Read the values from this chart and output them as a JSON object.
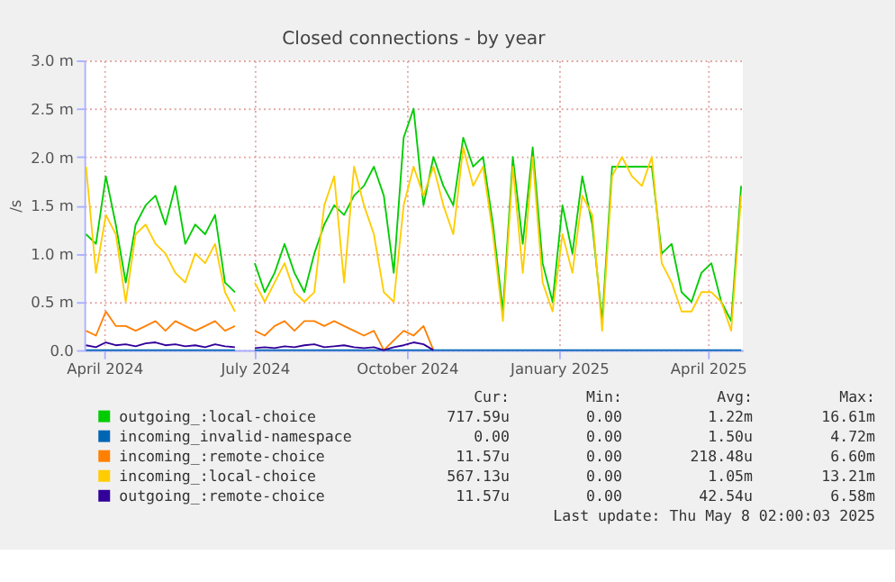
{
  "chart_data": {
    "type": "line",
    "title": "Closed connections - by year",
    "ylabel": "/s",
    "x": [
      "2024-03-21",
      "2024-03-27",
      "2024-04-02",
      "2024-04-08",
      "2024-04-14",
      "2024-04-20",
      "2024-04-26",
      "2024-05-02",
      "2024-05-08",
      "2024-05-14",
      "2024-05-20",
      "2024-05-26",
      "2024-06-01",
      "2024-06-07",
      "2024-06-13",
      "2024-06-19",
      "2024-06-25",
      "2024-07-01",
      "2024-07-07",
      "2024-07-13",
      "2024-07-19",
      "2024-07-25",
      "2024-07-31",
      "2024-08-06",
      "2024-08-12",
      "2024-08-18",
      "2024-08-24",
      "2024-08-30",
      "2024-09-05",
      "2024-09-11",
      "2024-09-17",
      "2024-09-23",
      "2024-09-29",
      "2024-10-05",
      "2024-10-11",
      "2024-10-17",
      "2024-10-23",
      "2024-10-29",
      "2024-11-04",
      "2024-11-10",
      "2024-11-16",
      "2024-11-22",
      "2024-11-28",
      "2024-12-04",
      "2024-12-10",
      "2024-12-16",
      "2024-12-22",
      "2024-12-28",
      "2025-01-03",
      "2025-01-09",
      "2025-01-15",
      "2025-01-21",
      "2025-01-27",
      "2025-02-02",
      "2025-02-08",
      "2025-02-14",
      "2025-02-20",
      "2025-02-26",
      "2025-03-04",
      "2025-03-10",
      "2025-03-16",
      "2025-03-22",
      "2025-03-28",
      "2025-04-03",
      "2025-04-09",
      "2025-04-15",
      "2025-04-21"
    ],
    "series": [
      {
        "name": "outgoing_:local-choice",
        "color": "#00cc00",
        "values": [
          1.2,
          1.1,
          1.8,
          1.3,
          0.7,
          1.3,
          1.5,
          1.6,
          1.3,
          1.7,
          1.1,
          1.3,
          1.2,
          1.4,
          0.7,
          0.6,
          null,
          0.9,
          0.6,
          0.8,
          1.1,
          0.8,
          0.6,
          1.0,
          1.3,
          1.5,
          1.4,
          1.6,
          1.7,
          1.9,
          1.6,
          0.8,
          2.2,
          2.5,
          1.5,
          2.0,
          1.7,
          1.5,
          2.2,
          1.9,
          2.0,
          1.3,
          0.4,
          2.0,
          1.1,
          2.1,
          0.9,
          0.5,
          1.5,
          1.0,
          1.8,
          1.3,
          0.3,
          1.9,
          1.9,
          1.9,
          1.9,
          1.9,
          1.0,
          1.1,
          0.6,
          0.5,
          0.8,
          0.9,
          0.5,
          0.3,
          1.7
        ]
      },
      {
        "name": "incoming_invalid-namespace",
        "color": "#0066b3",
        "values": [
          0,
          0,
          0,
          0,
          0,
          0,
          0,
          0,
          0,
          0,
          0,
          0,
          0,
          0,
          0,
          0,
          null,
          0,
          0,
          0,
          0,
          0,
          0,
          0,
          0,
          0,
          0,
          0,
          0,
          0,
          0,
          0,
          0,
          0,
          0,
          0,
          0,
          0,
          0,
          0,
          0,
          0,
          0,
          0,
          0,
          0,
          0,
          0,
          0,
          0,
          0,
          0,
          0,
          0,
          0,
          0,
          0,
          0,
          0,
          0,
          0,
          0,
          0,
          0,
          0,
          0,
          0
        ]
      },
      {
        "name": "incoming_:remote-choice",
        "color": "#ff8000",
        "values": [
          0.2,
          0.15,
          0.4,
          0.25,
          0.25,
          0.2,
          0.25,
          0.3,
          0.2,
          0.3,
          0.25,
          0.2,
          0.25,
          0.3,
          0.2,
          0.25,
          null,
          0.2,
          0.15,
          0.25,
          0.3,
          0.2,
          0.3,
          0.3,
          0.25,
          0.3,
          0.25,
          0.2,
          0.15,
          0.2,
          0.0,
          0.1,
          0.2,
          0.15,
          0.25,
          0.0,
          null,
          null,
          null,
          null,
          null,
          null,
          null,
          null,
          null,
          null,
          null,
          null,
          null,
          null,
          null,
          null,
          null,
          null,
          null,
          null,
          null,
          null,
          null,
          null,
          null,
          null,
          null,
          null,
          null,
          null,
          null
        ]
      },
      {
        "name": "incoming_:local-choice",
        "color": "#ffcc00",
        "values": [
          1.9,
          0.8,
          1.4,
          1.2,
          0.5,
          1.2,
          1.3,
          1.1,
          1.0,
          0.8,
          0.7,
          1.0,
          0.9,
          1.1,
          0.6,
          0.4,
          null,
          0.7,
          0.5,
          0.7,
          0.9,
          0.6,
          0.5,
          0.6,
          1.5,
          1.8,
          0.7,
          1.9,
          1.5,
          1.2,
          0.6,
          0.5,
          1.5,
          1.9,
          1.6,
          1.9,
          1.5,
          1.2,
          2.1,
          1.7,
          1.9,
          1.2,
          0.3,
          1.9,
          0.8,
          2.0,
          0.7,
          0.4,
          1.2,
          0.8,
          1.6,
          1.4,
          0.2,
          1.8,
          2.0,
          1.8,
          1.7,
          2.0,
          0.9,
          0.7,
          0.4,
          0.4,
          0.6,
          0.6,
          0.5,
          0.2,
          1.6
        ]
      },
      {
        "name": "outgoing_:remote-choice",
        "color": "#330099",
        "values": [
          0.05,
          0.03,
          0.08,
          0.05,
          0.06,
          0.04,
          0.07,
          0.08,
          0.05,
          0.06,
          0.04,
          0.05,
          0.03,
          0.06,
          0.04,
          0.03,
          null,
          0.02,
          0.03,
          0.02,
          0.04,
          0.03,
          0.05,
          0.06,
          0.03,
          0.04,
          0.05,
          0.03,
          0.02,
          0.03,
          0.0,
          0.03,
          0.05,
          0.08,
          0.06,
          0.0,
          null,
          null,
          null,
          null,
          null,
          null,
          null,
          null,
          null,
          null,
          null,
          null,
          null,
          null,
          null,
          null,
          null,
          null,
          null,
          null,
          null,
          null,
          null,
          null,
          null,
          null,
          null,
          null,
          null,
          null,
          null
        ]
      }
    ],
    "xlim": [
      "2024-03-20",
      "2025-04-22"
    ],
    "xticks": [
      {
        "value": "2024-04-01",
        "label": "April 2024"
      },
      {
        "value": "2024-07-01",
        "label": "July 2024"
      },
      {
        "value": "2024-10-01",
        "label": "October 2024"
      },
      {
        "value": "2025-01-01",
        "label": "January 2025"
      },
      {
        "value": "2025-04-01",
        "label": "April 2025"
      }
    ],
    "ylim": [
      0,
      3
    ],
    "yticks": [
      {
        "value": 0,
        "label": "0.0"
      },
      {
        "value": 0.5,
        "label": "0.5 m"
      },
      {
        "value": 1,
        "label": "1.0 m"
      },
      {
        "value": 1.5,
        "label": "1.5 m"
      },
      {
        "value": 2,
        "label": "2.0 m"
      },
      {
        "value": 2.5,
        "label": "2.5 m"
      },
      {
        "value": 3,
        "label": "3.0 m"
      }
    ],
    "grid": true,
    "legend": "bottom",
    "annotations": [
      "Cur:",
      "Min:",
      "Avg:",
      "Max:",
      "717.59u",
      "0.00",
      "1.22m",
      "16.61m",
      "0.00",
      "0.00",
      "1.50u",
      "4.72m",
      "11.57u",
      "0.00",
      "218.48u",
      "6.60m",
      "567.13u",
      "0.00",
      "1.05m",
      "13.21m",
      "11.57u",
      "0.00",
      "42.54u",
      "6.58m",
      "Last update: Thu May  8 02:00:03 2025"
    ]
  }
}
